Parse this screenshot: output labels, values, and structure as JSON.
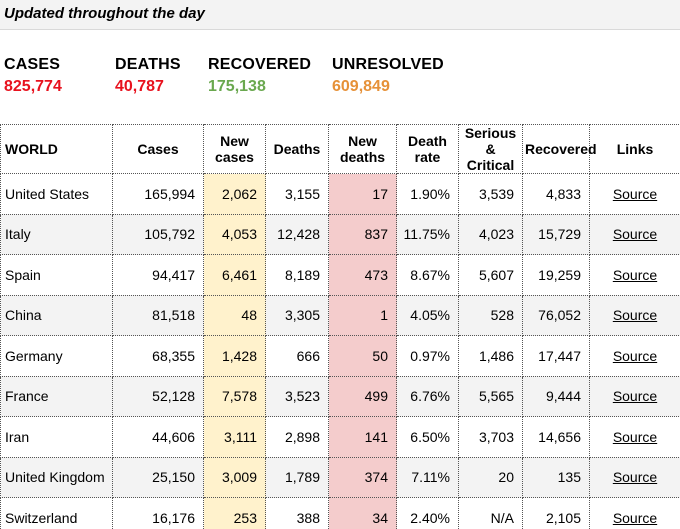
{
  "header": {
    "title": "Updated throughout the day"
  },
  "stats": {
    "cases": {
      "label": "CASES",
      "value": "825,774",
      "color": "#e8121e"
    },
    "deaths": {
      "label": "DEATHS",
      "value": "40,787",
      "color": "#e8121e"
    },
    "recovered": {
      "label": "RECOVERED",
      "value": "175,138",
      "color": "#6aa84f"
    },
    "unresolved": {
      "label": "UNRESOLVED",
      "value": "609,849",
      "color": "#e69138"
    }
  },
  "table": {
    "columns": {
      "world": "WORLD",
      "cases": "Cases",
      "new_cases_1": "New",
      "new_cases_2": "cases",
      "deaths": "Deaths",
      "new_deaths_1": "New",
      "new_deaths_2": "deaths",
      "death_rate_1": "Death",
      "death_rate_2": "rate",
      "serious_1": "Serious",
      "serious_2": "& Critical",
      "recovered": "Recovered",
      "links": "Links"
    },
    "rows": [
      {
        "country": "United States",
        "cases": "165,994",
        "new_cases": "2,062",
        "deaths": "3,155",
        "new_deaths": "17",
        "death_rate": "1.90%",
        "serious": "3,539",
        "recovered": "4,833",
        "link": "Source"
      },
      {
        "country": "Italy",
        "cases": "105,792",
        "new_cases": "4,053",
        "deaths": "12,428",
        "new_deaths": "837",
        "death_rate": "11.75%",
        "serious": "4,023",
        "recovered": "15,729",
        "link": "Source"
      },
      {
        "country": "Spain",
        "cases": "94,417",
        "new_cases": "6,461",
        "deaths": "8,189",
        "new_deaths": "473",
        "death_rate": "8.67%",
        "serious": "5,607",
        "recovered": "19,259",
        "link": "Source"
      },
      {
        "country": "China",
        "cases": "81,518",
        "new_cases": "48",
        "deaths": "3,305",
        "new_deaths": "1",
        "death_rate": "4.05%",
        "serious": "528",
        "recovered": "76,052",
        "link": "Source"
      },
      {
        "country": "Germany",
        "cases": "68,355",
        "new_cases": "1,428",
        "deaths": "666",
        "new_deaths": "50",
        "death_rate": "0.97%",
        "serious": "1,486",
        "recovered": "17,447",
        "link": "Source"
      },
      {
        "country": "France",
        "cases": "52,128",
        "new_cases": "7,578",
        "deaths": "3,523",
        "new_deaths": "499",
        "death_rate": "6.76%",
        "serious": "5,565",
        "recovered": "9,444",
        "link": "Source"
      },
      {
        "country": "Iran",
        "cases": "44,606",
        "new_cases": "3,111",
        "deaths": "2,898",
        "new_deaths": "141",
        "death_rate": "6.50%",
        "serious": "3,703",
        "recovered": "14,656",
        "link": "Source"
      },
      {
        "country": "United Kingdom",
        "cases": "25,150",
        "new_cases": "3,009",
        "deaths": "1,789",
        "new_deaths": "374",
        "death_rate": "7.11%",
        "serious": "20",
        "recovered": "135",
        "link": "Source"
      },
      {
        "country": "Switzerland",
        "cases": "16,176",
        "new_cases": "253",
        "deaths": "388",
        "new_deaths": "34",
        "death_rate": "2.40%",
        "serious": "N/A",
        "recovered": "2,105",
        "link": "Source"
      }
    ]
  }
}
